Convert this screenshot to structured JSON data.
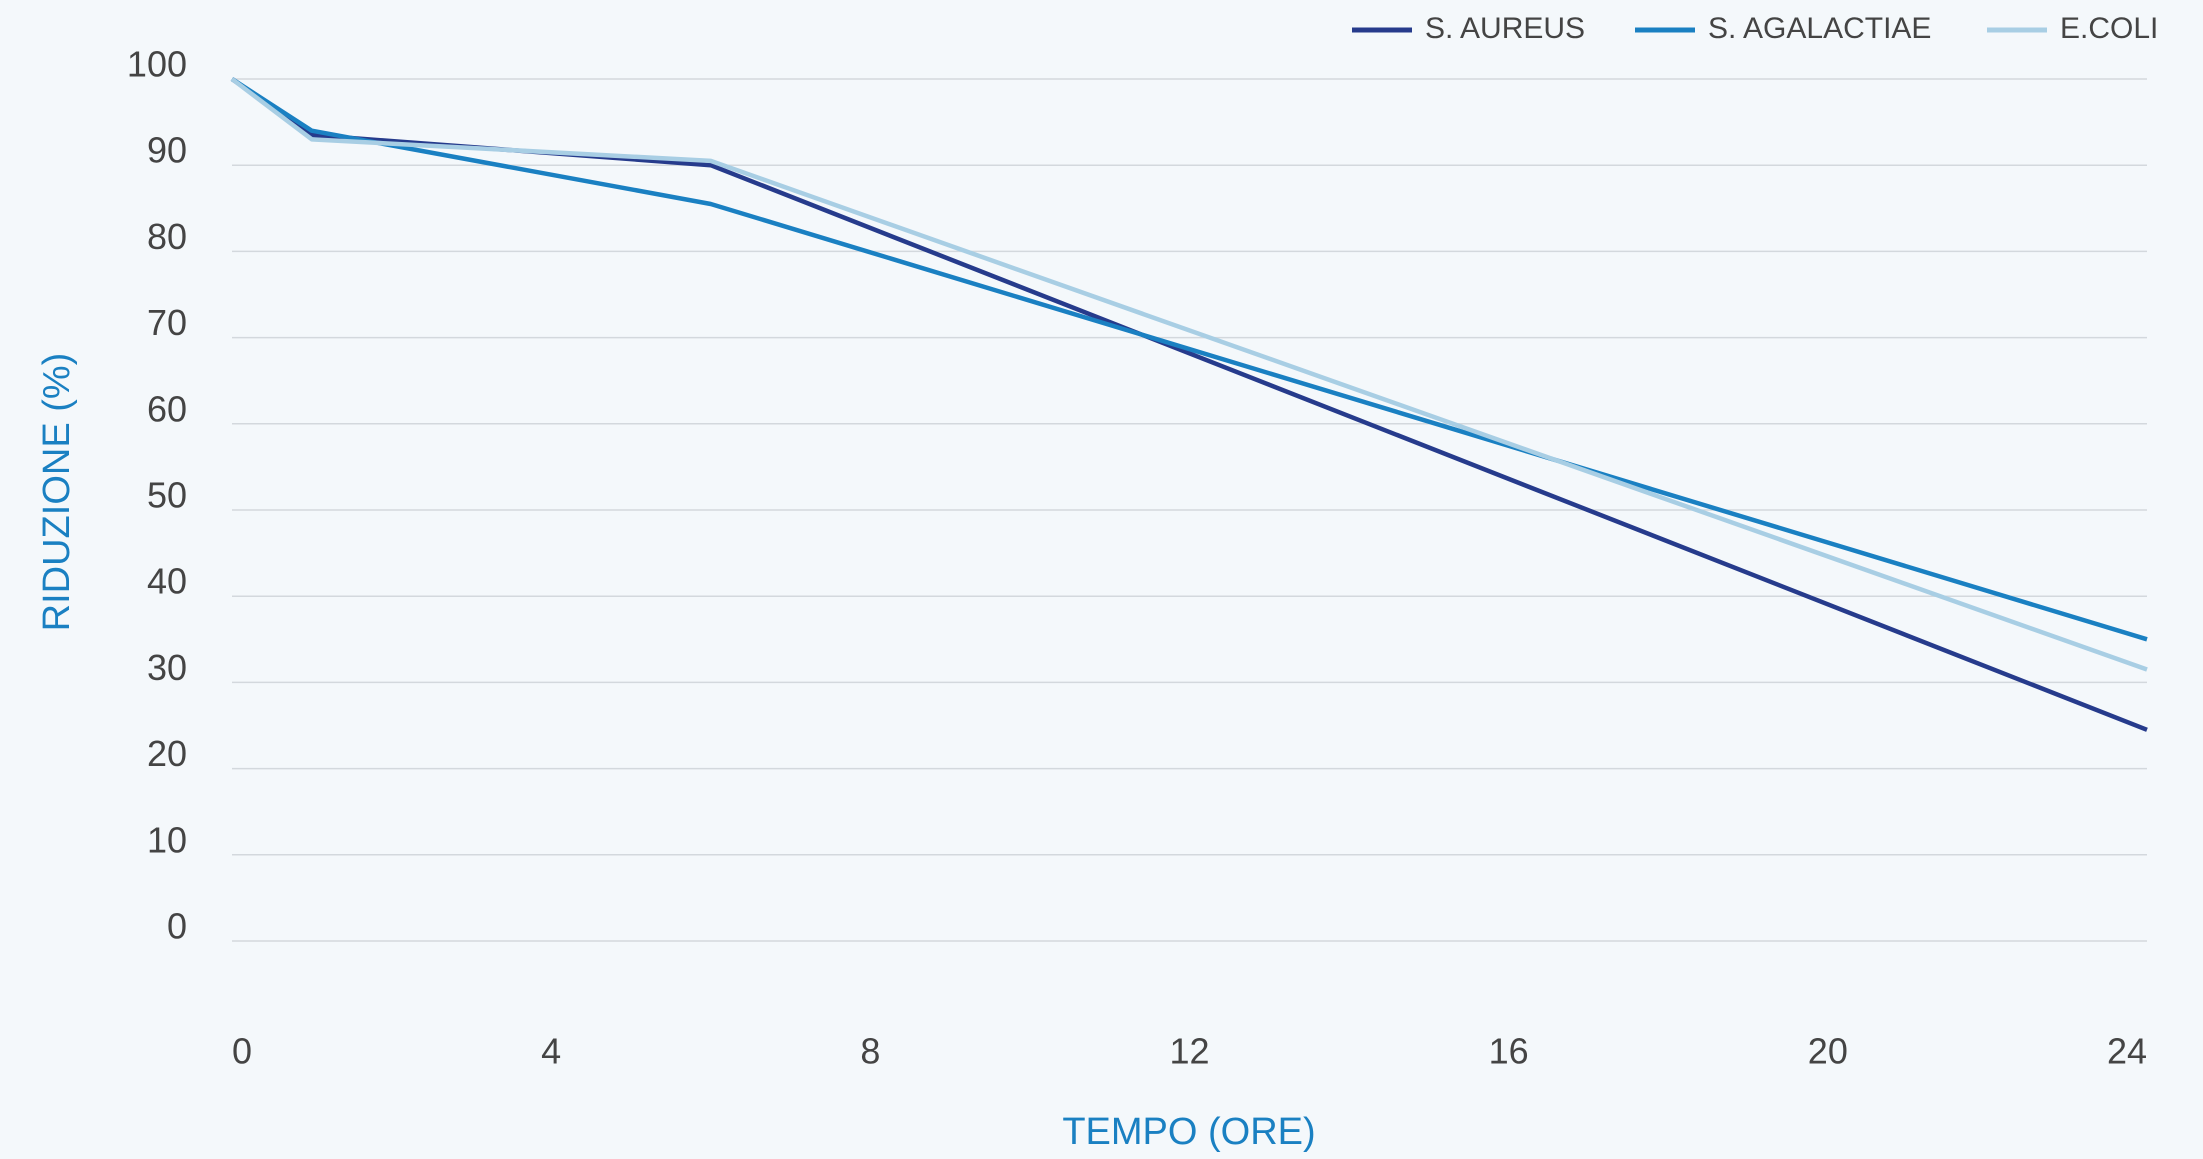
{
  "chart_data": {
    "type": "line",
    "xlabel": "TEMPO (ORE)",
    "ylabel": "RIDUZIONE (%)",
    "x": [
      0,
      1,
      6,
      24
    ],
    "series": [
      {
        "name": "S. AUREUS",
        "color": "#263b8c",
        "values": [
          100,
          93.5,
          90,
          24.5
        ]
      },
      {
        "name": "S. AGALACTIAE",
        "color": "#1a80c2",
        "values": [
          100,
          94,
          85.5,
          35
        ]
      },
      {
        "name": "E.COLI",
        "color": "#a8cee4",
        "values": [
          100,
          93,
          90.5,
          31.5
        ]
      }
    ],
    "xlim": [
      0,
      24
    ],
    "xticks": [
      0,
      4,
      8,
      12,
      16,
      20,
      24
    ],
    "ylim": [
      0,
      100
    ],
    "yticks": [
      0,
      10,
      20,
      30,
      40,
      50,
      60,
      70,
      80,
      90,
      100
    ],
    "grid": true,
    "legend": "top-right"
  }
}
